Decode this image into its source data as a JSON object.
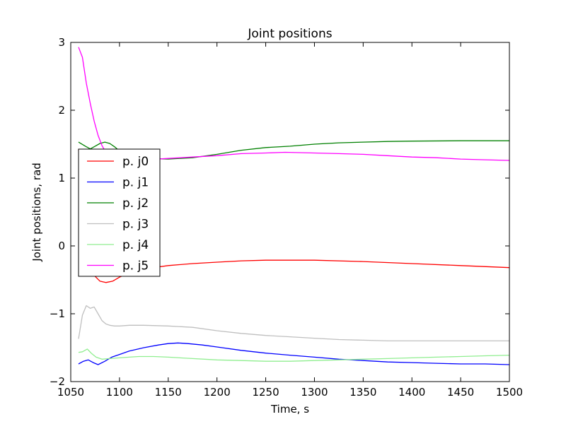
{
  "chart_data": {
    "type": "line",
    "title": "Joint positions",
    "xlabel": "Time, s",
    "ylabel": "Joint positions, rad",
    "xlim": [
      1050,
      1500
    ],
    "ylim": [
      -2,
      3
    ],
    "xticks": [
      1050,
      1100,
      1150,
      1200,
      1250,
      1300,
      1350,
      1400,
      1450,
      1500
    ],
    "xtick_labels": [
      "1050",
      "1100",
      "1150",
      "1200",
      "1250",
      "1300",
      "1350",
      "1400",
      "1450",
      "1500"
    ],
    "yticks": [
      -2,
      -1,
      0,
      1,
      2,
      3
    ],
    "ytick_labels": [
      "−2",
      "−1",
      "0",
      "1",
      "2",
      "3"
    ],
    "grid": false,
    "legend_position": "left-center",
    "series": [
      {
        "name": "p. j0",
        "color": "#ff0000",
        "x": [
          1058,
          1062,
          1067,
          1073,
          1080,
          1086,
          1093,
          1100,
          1110,
          1125,
          1150,
          1175,
          1200,
          1225,
          1250,
          1270,
          1300,
          1350,
          1400,
          1450,
          1500
        ],
        "y": [
          1.42,
          0.6,
          -0.1,
          -0.42,
          -0.52,
          -0.54,
          -0.52,
          -0.46,
          -0.4,
          -0.34,
          -0.29,
          -0.26,
          -0.24,
          -0.22,
          -0.21,
          -0.21,
          -0.21,
          -0.23,
          -0.26,
          -0.29,
          -0.32
        ]
      },
      {
        "name": "p. j1",
        "color": "#0000ff",
        "x": [
          1058,
          1063,
          1068,
          1073,
          1078,
          1085,
          1092,
          1100,
          1110,
          1125,
          1140,
          1150,
          1160,
          1170,
          1185,
          1200,
          1225,
          1250,
          1275,
          1300,
          1325,
          1350,
          1375,
          1400,
          1425,
          1450,
          1475,
          1500
        ],
        "y": [
          -1.74,
          -1.7,
          -1.68,
          -1.72,
          -1.75,
          -1.7,
          -1.64,
          -1.6,
          -1.55,
          -1.5,
          -1.46,
          -1.44,
          -1.43,
          -1.44,
          -1.46,
          -1.49,
          -1.54,
          -1.58,
          -1.61,
          -1.64,
          -1.67,
          -1.69,
          -1.71,
          -1.72,
          -1.73,
          -1.74,
          -1.74,
          -1.75
        ]
      },
      {
        "name": "p. j2",
        "color": "#008000",
        "x": [
          1058,
          1065,
          1070,
          1075,
          1080,
          1085,
          1090,
          1095,
          1100,
          1110,
          1125,
          1150,
          1175,
          1200,
          1225,
          1250,
          1275,
          1300,
          1325,
          1350,
          1375,
          1400,
          1450,
          1500
        ],
        "y": [
          1.53,
          1.47,
          1.43,
          1.47,
          1.51,
          1.53,
          1.51,
          1.46,
          1.4,
          1.33,
          1.29,
          1.28,
          1.3,
          1.35,
          1.41,
          1.45,
          1.47,
          1.5,
          1.52,
          1.53,
          1.54,
          1.545,
          1.55,
          1.55
        ]
      },
      {
        "name": "p. j3",
        "color": "#bfbfbf",
        "x": [
          1058,
          1062,
          1066,
          1070,
          1074,
          1078,
          1082,
          1086,
          1090,
          1095,
          1100,
          1110,
          1125,
          1150,
          1175,
          1200,
          1225,
          1250,
          1275,
          1300,
          1325,
          1350,
          1375,
          1400,
          1450,
          1500
        ],
        "y": [
          -1.37,
          -1.02,
          -0.88,
          -0.92,
          -0.9,
          -1.0,
          -1.1,
          -1.15,
          -1.17,
          -1.18,
          -1.18,
          -1.17,
          -1.17,
          -1.18,
          -1.2,
          -1.25,
          -1.29,
          -1.32,
          -1.34,
          -1.36,
          -1.38,
          -1.39,
          -1.4,
          -1.4,
          -1.4,
          -1.4
        ]
      },
      {
        "name": "p. j4",
        "color": "#90ee90",
        "x": [
          1058,
          1062,
          1067,
          1071,
          1076,
          1082,
          1090,
          1100,
          1110,
          1120,
          1135,
          1150,
          1175,
          1200,
          1225,
          1250,
          1275,
          1300,
          1325,
          1350,
          1375,
          1400,
          1425,
          1450,
          1475,
          1500
        ],
        "y": [
          -1.57,
          -1.56,
          -1.52,
          -1.58,
          -1.64,
          -1.67,
          -1.66,
          -1.65,
          -1.64,
          -1.63,
          -1.63,
          -1.64,
          -1.66,
          -1.68,
          -1.69,
          -1.7,
          -1.7,
          -1.69,
          -1.68,
          -1.67,
          -1.66,
          -1.65,
          -1.64,
          -1.63,
          -1.62,
          -1.61
        ]
      },
      {
        "name": "p. j5",
        "color": "#ff00ff",
        "x": [
          1058,
          1062,
          1066,
          1070,
          1074,
          1078,
          1082,
          1086,
          1090,
          1095,
          1100,
          1110,
          1125,
          1150,
          1175,
          1200,
          1225,
          1250,
          1270,
          1300,
          1325,
          1350,
          1375,
          1400,
          1425,
          1450,
          1475,
          1500
        ],
        "y": [
          2.93,
          2.78,
          2.4,
          2.1,
          1.84,
          1.63,
          1.48,
          1.38,
          1.31,
          1.27,
          1.26,
          1.26,
          1.27,
          1.29,
          1.31,
          1.33,
          1.36,
          1.37,
          1.38,
          1.37,
          1.36,
          1.35,
          1.33,
          1.31,
          1.3,
          1.28,
          1.27,
          1.26
        ]
      }
    ]
  }
}
